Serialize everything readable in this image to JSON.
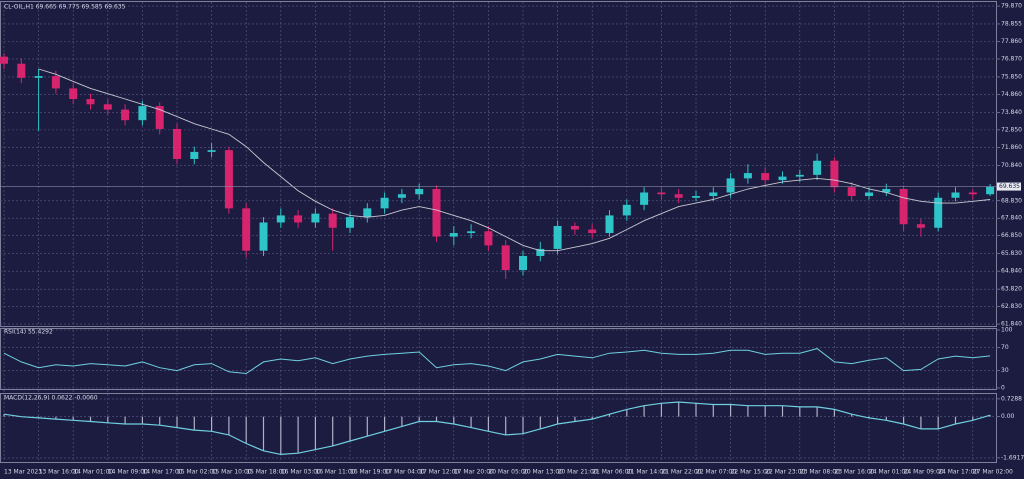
{
  "chart_data": {
    "type": "candlestick",
    "title": "CL-OIL,H1 69.665 69.775 69.585 69.635",
    "current_price": 69.635,
    "up_color": "#2ec4c8",
    "down_color": "#d8246f",
    "grid": true,
    "ylim": [
      61.73,
      80.1
    ],
    "yticks": [
      {
        "value": 79.87,
        "label": "79.870"
      },
      {
        "value": 78.855,
        "label": "78.855"
      },
      {
        "value": 77.86,
        "label": "77.860"
      },
      {
        "value": 76.87,
        "label": "76.870"
      },
      {
        "value": 75.85,
        "label": "75.850"
      },
      {
        "value": 74.86,
        "label": "74.860"
      },
      {
        "value": 73.84,
        "label": "73.840"
      },
      {
        "value": 72.85,
        "label": "72.850"
      },
      {
        "value": 71.86,
        "label": "71.860"
      },
      {
        "value": 70.84,
        "label": "70.840"
      },
      {
        "value": 68.83,
        "label": "68.830"
      },
      {
        "value": 67.84,
        "label": "67.840"
      },
      {
        "value": 66.85,
        "label": "66.850"
      },
      {
        "value": 65.83,
        "label": "65.830"
      },
      {
        "value": 64.84,
        "label": "64.840"
      },
      {
        "value": 63.82,
        "label": "63.820"
      },
      {
        "value": 62.83,
        "label": "62.830"
      },
      {
        "value": 61.84,
        "label": "61.840"
      }
    ],
    "xticks": [
      "13 Mar 2023",
      "13 Mar 16:00",
      "14 Mar 01:00",
      "14 Mar 09:00",
      "14 Mar 17:00",
      "15 Mar 02:00",
      "15 Mar 10:00",
      "15 Mar 18:00",
      "16 Mar 03:00",
      "16 Mar 11:00",
      "16 Mar 19:00",
      "17 Mar 04:00",
      "17 Mar 12:00",
      "17 Mar 20:00",
      "20 Mar 05:00",
      "20 Mar 13:00",
      "20 Mar 21:00",
      "21 Mar 06:00",
      "21 Mar 14:00",
      "21 Mar 22:00",
      "22 Mar 07:00",
      "22 Mar 15:00",
      "22 Mar 23:00",
      "23 Mar 08:00",
      "23 Mar 16:00",
      "24 Mar 01:00",
      "24 Mar 09:00",
      "24 Mar 17:00",
      "27 Mar 02:00"
    ],
    "open": [
      77.0,
      76.6,
      75.8,
      75.9,
      75.2,
      74.6,
      74.3,
      74.0,
      73.4,
      74.2,
      72.9,
      71.2,
      71.6,
      71.7,
      68.4,
      66.0,
      67.6,
      68.0,
      67.6,
      68.1,
      67.3,
      67.9,
      68.4,
      69.0,
      69.2,
      69.5,
      66.8,
      67.0,
      67.1,
      66.3,
      64.9,
      65.7,
      66.1,
      67.4,
      67.2,
      67.0,
      68.0,
      68.6,
      69.3,
      69.2,
      69.0,
      69.1,
      69.3,
      70.1,
      70.4,
      70.0,
      70.2,
      70.3,
      71.1,
      69.6,
      69.1,
      69.3,
      69.5,
      67.5,
      67.3,
      69.0,
      69.3,
      69.2
    ],
    "high": [
      77.2,
      76.9,
      76.3,
      76.2,
      75.5,
      74.9,
      74.6,
      74.3,
      74.5,
      74.4,
      73.2,
      71.9,
      72.1,
      71.9,
      68.7,
      67.9,
      68.4,
      68.3,
      68.4,
      68.4,
      68.2,
      68.7,
      69.3,
      69.5,
      69.8,
      69.7,
      67.4,
      67.5,
      67.4,
      66.6,
      66.0,
      66.5,
      67.7,
      67.6,
      67.5,
      68.3,
      68.9,
      69.6,
      69.6,
      69.5,
      69.4,
      69.6,
      70.4,
      70.9,
      70.7,
      70.5,
      70.6,
      71.5,
      71.3,
      69.9,
      69.6,
      69.8,
      69.7,
      67.8,
      69.3,
      69.6,
      69.5,
      69.775
    ],
    "low": [
      76.3,
      75.5,
      72.8,
      74.9,
      74.3,
      74.0,
      73.7,
      73.1,
      73.1,
      72.6,
      70.9,
      70.9,
      71.3,
      68.1,
      65.6,
      65.7,
      67.3,
      67.3,
      67.3,
      66.0,
      67.0,
      67.6,
      68.1,
      68.7,
      68.9,
      66.5,
      66.3,
      66.7,
      66.0,
      64.4,
      64.6,
      65.4,
      65.8,
      66.9,
      66.7,
      66.8,
      67.7,
      68.3,
      68.9,
      68.7,
      68.8,
      68.8,
      69.0,
      69.8,
      69.7,
      69.8,
      69.9,
      70.0,
      69.3,
      68.8,
      68.9,
      69.1,
      67.1,
      66.8,
      67.1,
      68.8,
      68.9,
      69.1
    ],
    "close": [
      76.6,
      75.8,
      75.9,
      75.2,
      74.6,
      74.3,
      74.0,
      73.4,
      74.2,
      72.9,
      71.2,
      71.6,
      71.7,
      68.4,
      66.0,
      67.6,
      68.0,
      67.6,
      68.1,
      67.3,
      67.9,
      68.4,
      69.0,
      69.2,
      69.5,
      66.8,
      67.0,
      67.1,
      66.3,
      64.9,
      65.7,
      66.1,
      67.4,
      67.2,
      67.0,
      68.0,
      68.6,
      69.3,
      69.2,
      69.0,
      69.1,
      69.3,
      70.1,
      70.4,
      70.0,
      70.2,
      70.3,
      71.1,
      69.6,
      69.1,
      69.3,
      69.5,
      67.5,
      67.3,
      69.0,
      69.3,
      69.2,
      69.635
    ],
    "ma": {
      "color": "#c8c8d2",
      "values": [
        null,
        null,
        76.3,
        76.0,
        75.6,
        75.2,
        74.9,
        74.6,
        74.3,
        74.0,
        73.6,
        73.2,
        72.9,
        72.6,
        71.9,
        71.0,
        70.2,
        69.4,
        68.8,
        68.3,
        68.0,
        67.9,
        68.0,
        68.3,
        68.5,
        68.3,
        68.0,
        67.7,
        67.3,
        66.8,
        66.3,
        66.0,
        66.0,
        66.2,
        66.4,
        66.7,
        67.2,
        67.7,
        68.1,
        68.5,
        68.7,
        68.9,
        69.2,
        69.5,
        69.7,
        69.9,
        70.0,
        70.1,
        70.0,
        69.8,
        69.5,
        69.3,
        69.0,
        68.8,
        68.7,
        68.7,
        68.8,
        68.9
      ]
    },
    "rsi": {
      "title": "RSI(14) 55.4292",
      "color": "#6fd0e0",
      "ylim": [
        0,
        100
      ],
      "yticks": [
        100,
        70,
        30,
        0
      ],
      "values": [
        60,
        45,
        35,
        40,
        38,
        42,
        40,
        38,
        45,
        35,
        30,
        40,
        42,
        28,
        25,
        45,
        50,
        47,
        52,
        42,
        50,
        55,
        58,
        60,
        62,
        35,
        40,
        42,
        38,
        30,
        45,
        50,
        58,
        55,
        52,
        60,
        62,
        65,
        60,
        58,
        58,
        60,
        65,
        65,
        58,
        60,
        60,
        68,
        45,
        42,
        48,
        52,
        30,
        32,
        50,
        55,
        52,
        55.4
      ]
    },
    "macd": {
      "title": "MACD(12,26,9) 0.0622 -0.0060",
      "color": "#6fd0e0",
      "bar_color": "#b0b0c8",
      "ylim": [
        -1.86,
        0.93
      ],
      "yticks": [
        0.7288,
        {
          "value": 0,
          "label": "0.00"
        },
        -1.6917
      ],
      "values": [
        0.1,
        0.0,
        -0.05,
        -0.1,
        -0.15,
        -0.2,
        -0.25,
        -0.3,
        -0.3,
        -0.35,
        -0.45,
        -0.55,
        -0.6,
        -0.75,
        -1.1,
        -1.4,
        -1.55,
        -1.5,
        -1.35,
        -1.2,
        -1.0,
        -0.8,
        -0.6,
        -0.4,
        -0.2,
        -0.2,
        -0.3,
        -0.45,
        -0.6,
        -0.75,
        -0.7,
        -0.5,
        -0.3,
        -0.2,
        -0.1,
        0.1,
        0.3,
        0.45,
        0.55,
        0.6,
        0.55,
        0.5,
        0.5,
        0.45,
        0.45,
        0.45,
        0.4,
        0.4,
        0.3,
        0.1,
        -0.05,
        -0.15,
        -0.3,
        -0.5,
        -0.5,
        -0.3,
        -0.15,
        0.06
      ]
    }
  }
}
